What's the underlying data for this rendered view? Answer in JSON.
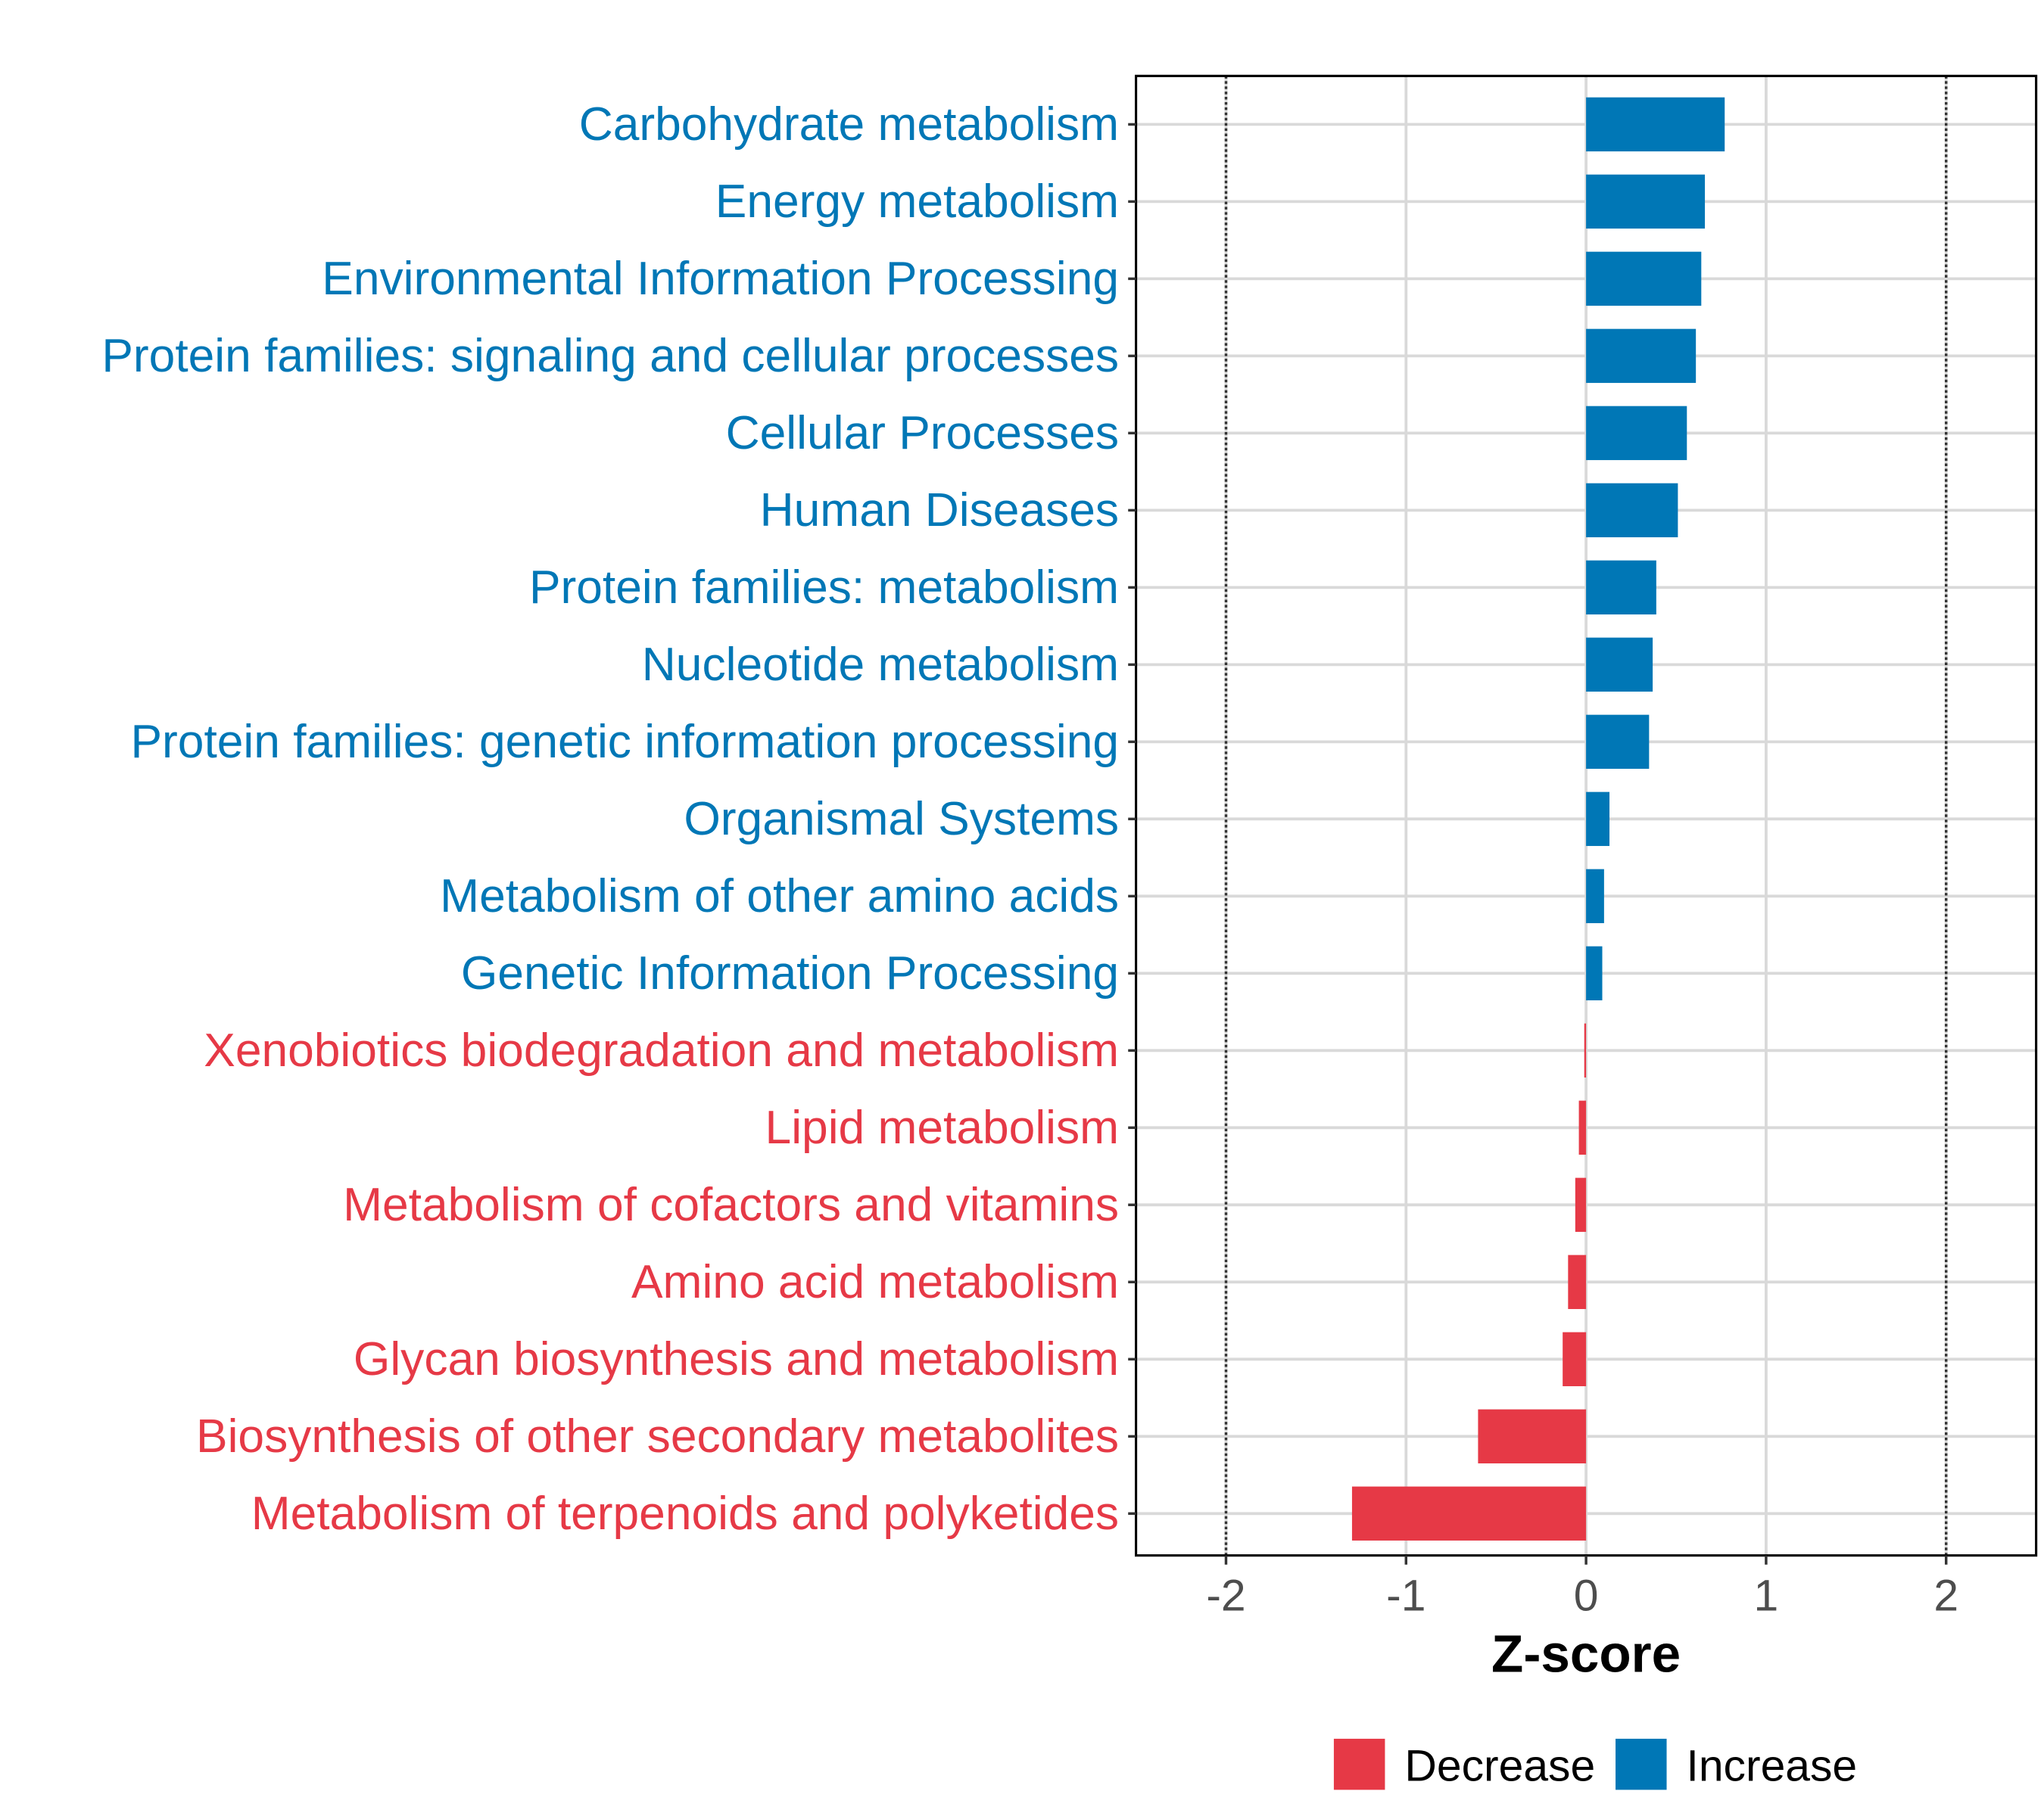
{
  "chart_data": {
    "type": "bar",
    "orientation": "horizontal",
    "title": "",
    "xlabel": "Z-score",
    "ylabel": "",
    "xlim": [
      -2.5,
      2.5
    ],
    "x_ticks": [
      -2,
      -1,
      0,
      1,
      2
    ],
    "x_tick_labels": [
      "-2",
      "-1",
      "0",
      "1",
      "2"
    ],
    "reference_lines": [
      -2,
      2
    ],
    "grid": true,
    "legend_position": "bottom",
    "colors": {
      "Decrease": "#e63946",
      "Increase": "#0077b6"
    },
    "legend": [
      {
        "label": "Decrease",
        "color": "#e63946"
      },
      {
        "label": "Increase",
        "color": "#0077b6"
      }
    ],
    "categories": [
      "Carbohydrate metabolism",
      "Energy metabolism",
      "Environmental Information Processing",
      "Protein families: signaling and cellular processes",
      "Cellular Processes",
      "Human Diseases",
      "Protein families: metabolism",
      "Nucleotide metabolism",
      "Protein families: genetic information processing",
      "Organismal Systems",
      "Metabolism of other amino acids",
      "Genetic Information Processing",
      "Xenobiotics biodegradation and metabolism",
      "Lipid metabolism",
      "Metabolism of cofactors and vitamins",
      "Amino acid metabolism",
      "Glycan biosynthesis and metabolism",
      "Biosynthesis of other secondary metabolites",
      "Metabolism of terpenoids and polyketides"
    ],
    "values": [
      0.77,
      0.66,
      0.64,
      0.61,
      0.56,
      0.51,
      0.39,
      0.37,
      0.35,
      0.13,
      0.1,
      0.09,
      -0.01,
      -0.04,
      -0.06,
      -0.1,
      -0.13,
      -0.6,
      -1.3
    ],
    "groups": [
      "Increase",
      "Increase",
      "Increase",
      "Increase",
      "Increase",
      "Increase",
      "Increase",
      "Increase",
      "Increase",
      "Increase",
      "Increase",
      "Increase",
      "Decrease",
      "Decrease",
      "Decrease",
      "Decrease",
      "Decrease",
      "Decrease",
      "Decrease"
    ]
  }
}
